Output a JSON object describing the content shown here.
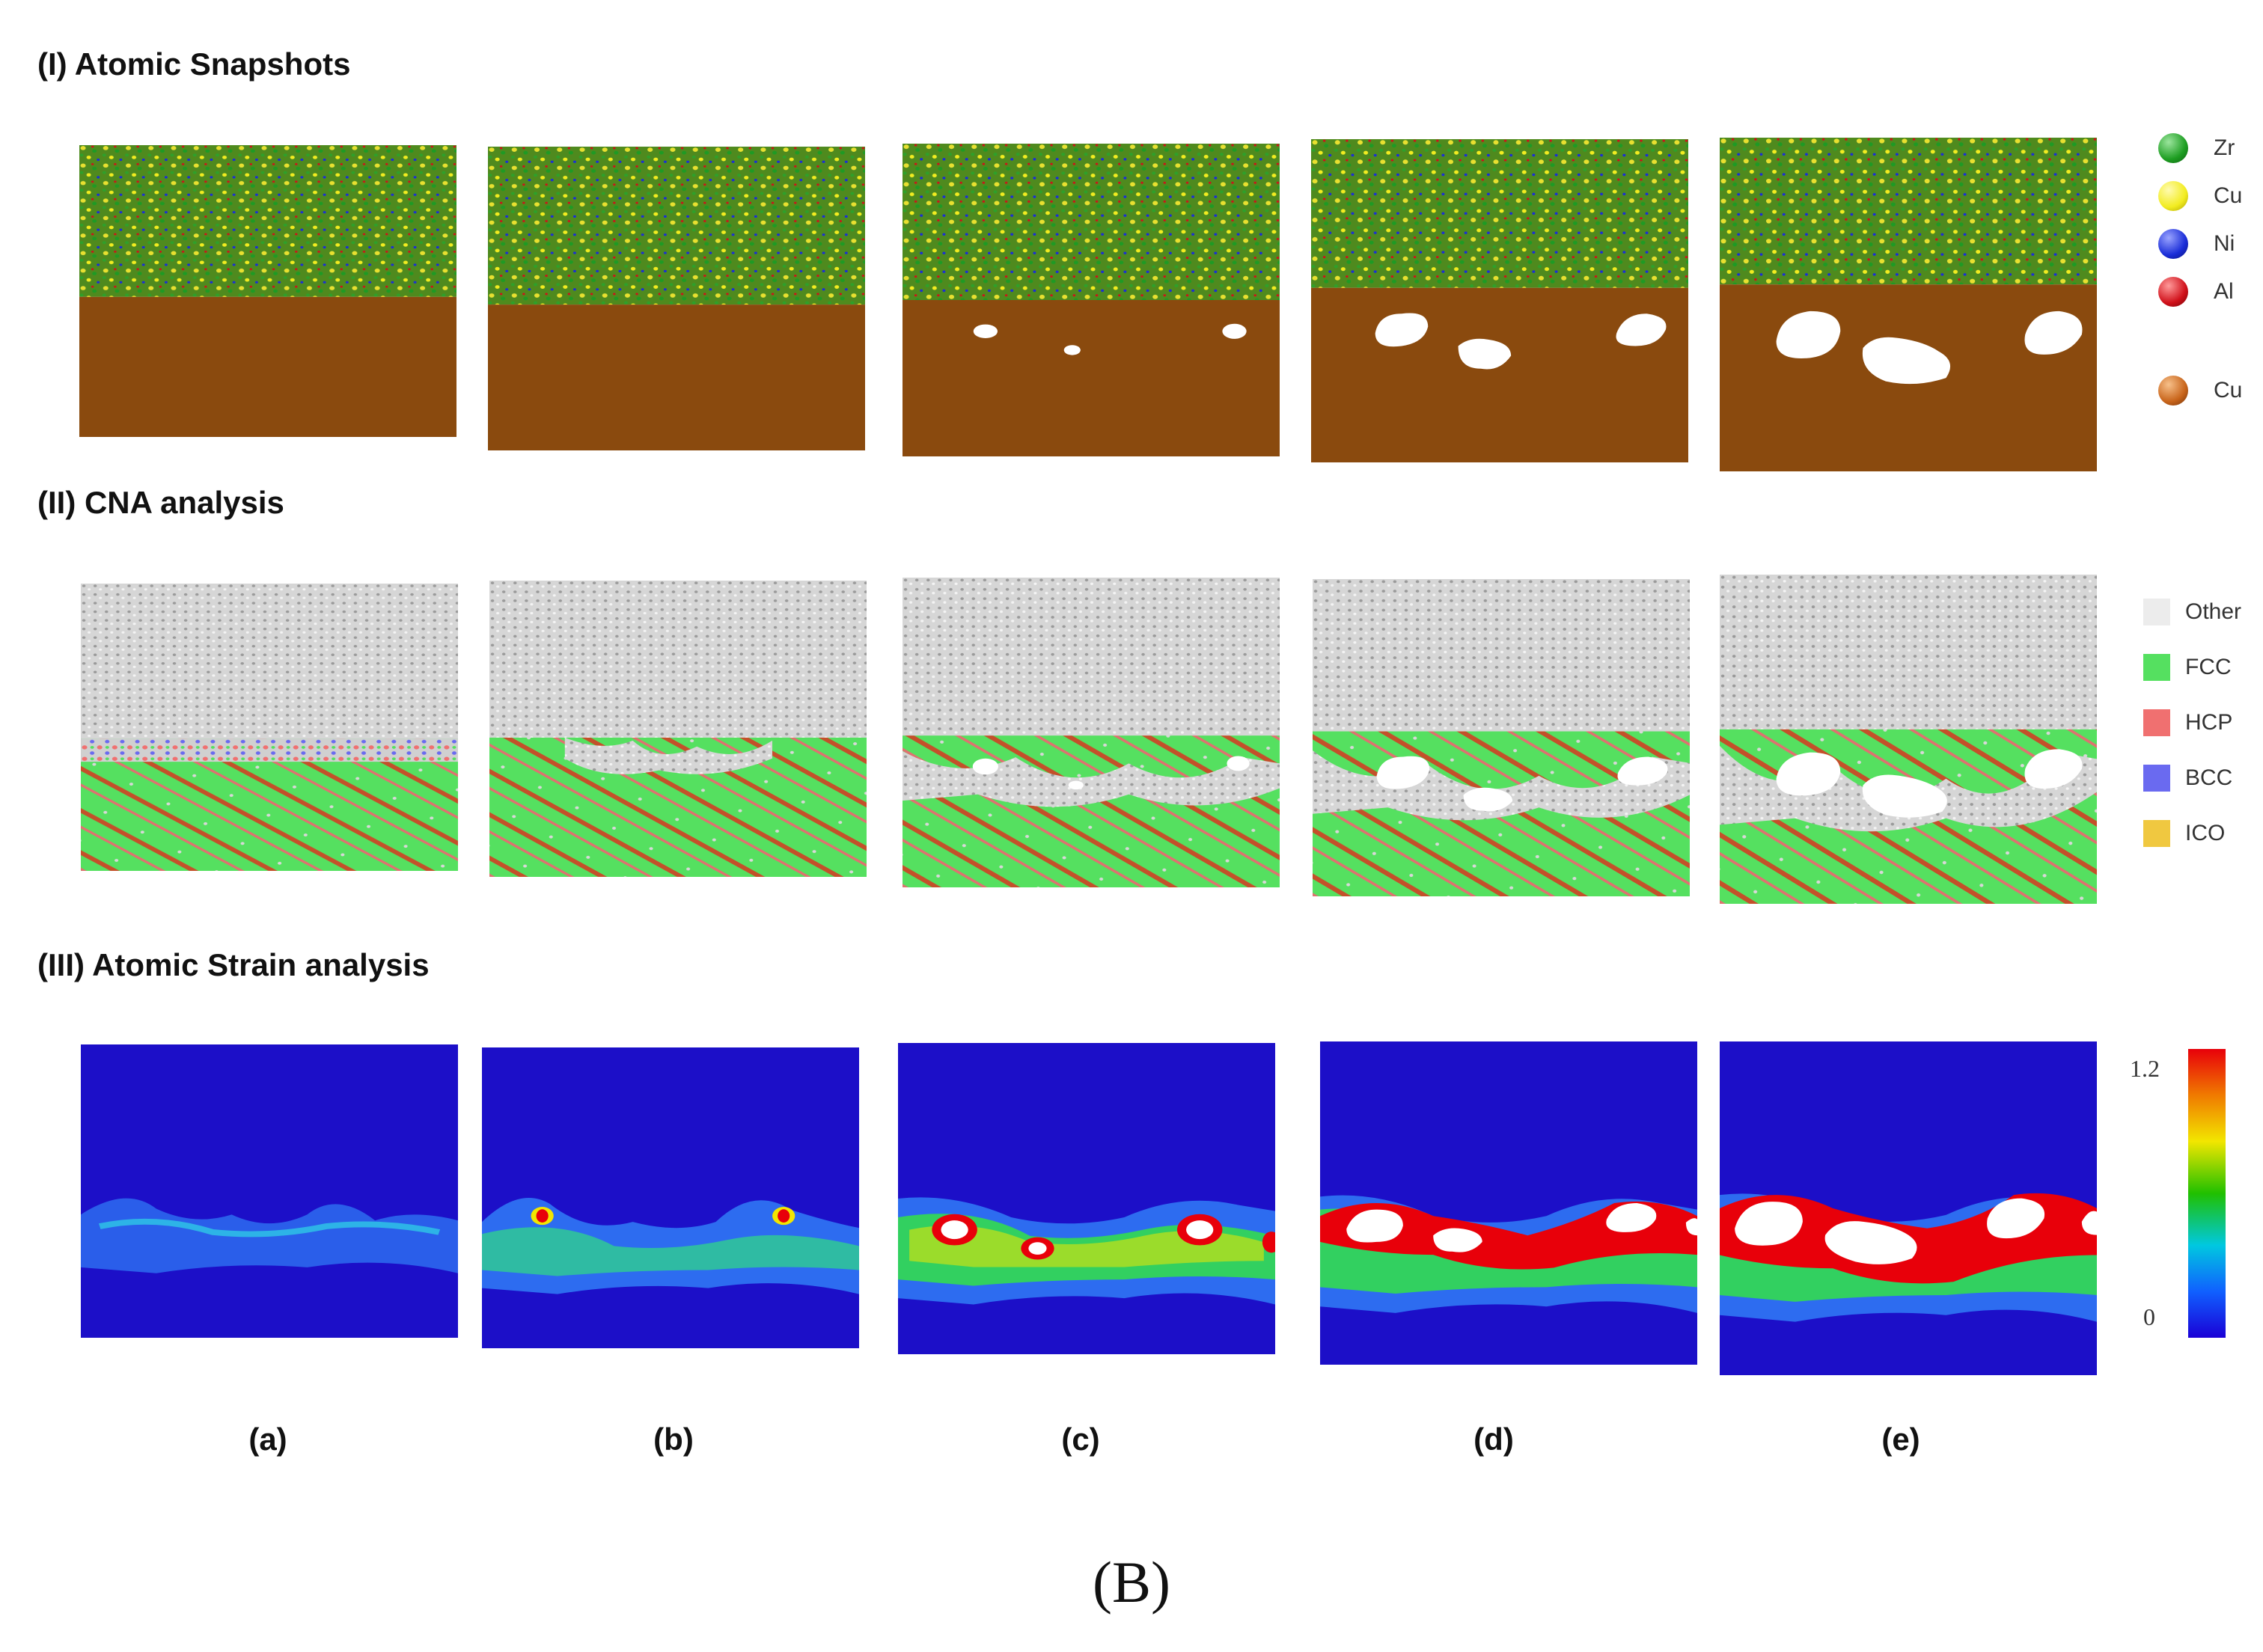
{
  "sections": [
    {
      "title": "(I) Atomic Snapshots"
    },
    {
      "title": "(II) CNA analysis"
    },
    {
      "title": "(III) Atomic Strain analysis"
    }
  ],
  "panel_labels": [
    "(a)",
    "(b)",
    "(c)",
    "(d)",
    "(e)"
  ],
  "figure_label": "(B)",
  "legend_atoms": [
    {
      "label": "Zr",
      "color": "#1e9e22"
    },
    {
      "label": "Cu",
      "color": "#f2ec20"
    },
    {
      "label": "Ni",
      "color": "#1a2dd8"
    },
    {
      "label": "Al",
      "color": "#d0101a"
    },
    {
      "label": "Cu",
      "color": "#c8641a"
    }
  ],
  "legend_cna": [
    {
      "label": "Other",
      "color": "#ececec"
    },
    {
      "label": "FCC",
      "color": "#55e060"
    },
    {
      "label": "HCP",
      "color": "#f07070"
    },
    {
      "label": "BCC",
      "color": "#6a6af0"
    },
    {
      "label": "ICO",
      "color": "#f0c840"
    }
  ],
  "colorbar": {
    "max_label": "1.2",
    "min_label": "0"
  }
}
